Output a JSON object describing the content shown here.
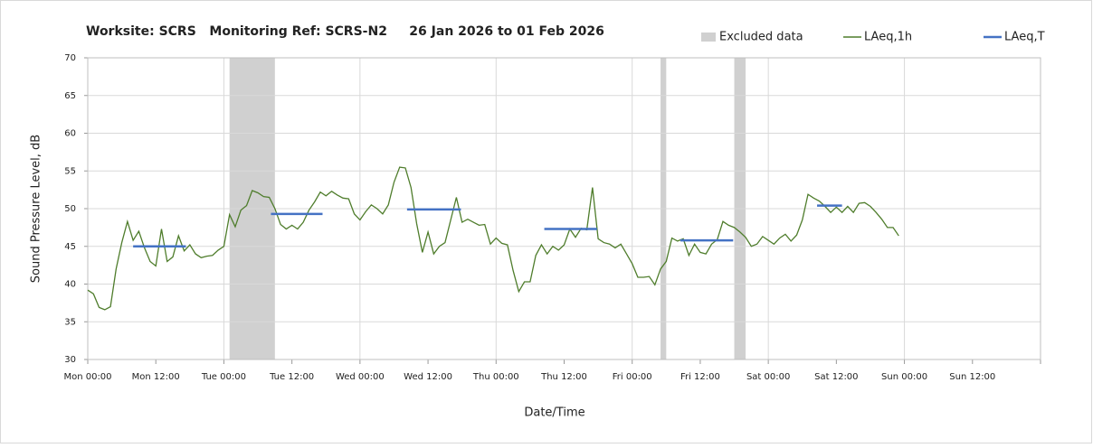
{
  "chart_data": {
    "type": "line",
    "title": "Worksite: SCRS   Monitoring Ref: SCRS-N2     26 Jan 2026 to 01 Feb 2026",
    "xlabel": "Date/Time",
    "ylabel": "Sound Pressure Level, dB",
    "xlim": [
      0,
      168
    ],
    "ylim": [
      30,
      70
    ],
    "xticks": [
      {
        "value": 0,
        "label": "Mon 00:00"
      },
      {
        "value": 12,
        "label": "Mon 12:00"
      },
      {
        "value": 24,
        "label": "Tue 00:00"
      },
      {
        "value": 36,
        "label": "Tue 12:00"
      },
      {
        "value": 48,
        "label": "Wed 00:00"
      },
      {
        "value": 60,
        "label": "Wed 12:00"
      },
      {
        "value": 72,
        "label": "Thu 00:00"
      },
      {
        "value": 84,
        "label": "Thu 12:00"
      },
      {
        "value": 96,
        "label": "Fri 00:00"
      },
      {
        "value": 108,
        "label": "Fri 12:00"
      },
      {
        "value": 120,
        "label": "Sat 00:00"
      },
      {
        "value": 132,
        "label": "Sat 12:00"
      },
      {
        "value": 144,
        "label": "Sun 00:00"
      },
      {
        "value": 156,
        "label": "Sun 12:00"
      }
    ],
    "yticks": [
      30,
      35,
      40,
      45,
      50,
      55,
      60,
      65,
      70
    ],
    "grid": true,
    "excluded": {
      "name": "Excluded data",
      "color": "#d0d0d0",
      "ranges": [
        [
          25,
          33
        ],
        [
          101,
          102
        ],
        [
          114,
          116
        ]
      ]
    },
    "series": [
      {
        "name": "LAeq,1h",
        "color": "#4f7d2c",
        "x": [
          0,
          1,
          2,
          3,
          4,
          5,
          6,
          7,
          8,
          9,
          10,
          11,
          12,
          13,
          14,
          15,
          16,
          17,
          18,
          19,
          20,
          21,
          22,
          23,
          24,
          25,
          26,
          27,
          28,
          29,
          30,
          31,
          32,
          33,
          34,
          35,
          36,
          37,
          38,
          39,
          40,
          41,
          42,
          43,
          44,
          45,
          46,
          47,
          48,
          49,
          50,
          51,
          52,
          53,
          54,
          55,
          56,
          57,
          58,
          59,
          60,
          61,
          62,
          63,
          64,
          65,
          66,
          67,
          68,
          69,
          70,
          71,
          72,
          73,
          74,
          75,
          76,
          77,
          78,
          79,
          80,
          81,
          82,
          83,
          84,
          85,
          86,
          87,
          88,
          89,
          90,
          91,
          92,
          93,
          94,
          95,
          96,
          97,
          98,
          99,
          100,
          101,
          102,
          103,
          104,
          105,
          106,
          107,
          108,
          109,
          110,
          111,
          112,
          113,
          114,
          115,
          116,
          117,
          118,
          119,
          120,
          121,
          122,
          123,
          124,
          125,
          126,
          127,
          128,
          129,
          130,
          131,
          132,
          133,
          134,
          135,
          136,
          137,
          138,
          139,
          140,
          141,
          142,
          143
        ],
        "values": [
          39.2,
          38.7,
          36.9,
          36.6,
          37,
          42,
          45.5,
          48.3,
          45.8,
          47,
          44.8,
          43,
          42.4,
          47.3,
          43,
          43.6,
          46.4,
          44.4,
          45.2,
          44,
          43.5,
          43.7,
          43.8,
          44.5,
          45,
          49.2,
          47.6,
          49.8,
          50.4,
          52.4,
          52.1,
          51.6,
          51.5,
          50,
          47.9,
          47.3,
          47.8,
          47.3,
          48.2,
          49.8,
          50.9,
          52.2,
          51.7,
          52.3,
          51.8,
          51.4,
          51.3,
          49.3,
          48.5,
          49.6,
          50.5,
          50,
          49.3,
          50.5,
          53.5,
          55.5,
          55.4,
          52.8,
          48,
          44.2,
          46.9,
          44,
          45,
          45.5,
          48.5,
          51.5,
          48.2,
          48.6,
          48.2,
          47.8,
          47.9,
          45.3,
          46.1,
          45.4,
          45.2,
          41.8,
          39,
          40.3,
          40.3,
          43.8,
          45.2,
          44,
          45,
          44.5,
          45.2,
          47.3,
          46.2,
          47.4,
          47.2,
          52.8,
          46,
          45.5,
          45.3,
          44.8,
          45.3,
          44,
          42.7,
          40.9,
          40.9,
          41,
          39.9,
          42,
          43,
          46.1,
          45.7,
          46,
          43.8,
          45.3,
          44.2,
          44,
          45.3,
          45.9,
          48.3,
          47.8,
          47.5,
          46.9,
          46.2,
          45,
          45.3,
          46.3,
          45.8,
          45.3,
          46.1,
          46.6,
          45.7,
          46.5,
          48.5,
          51.9,
          51.4,
          51,
          50.3,
          49.5,
          50.2,
          49.5,
          50.3,
          49.5,
          50.7,
          50.8,
          50.3,
          49.5,
          48.6,
          47.5,
          47.5,
          46.4
        ]
      },
      {
        "name": "LAeq,T",
        "color": "#4472c4",
        "segments": [
          {
            "x": [
              8,
              17.3
            ],
            "value": 45
          },
          {
            "x": [
              32.3,
              41.4
            ],
            "value": 49.3
          },
          {
            "x": [
              56.3,
              65.8
            ],
            "value": 49.9
          },
          {
            "x": [
              80.5,
              89.8
            ],
            "value": 47.3
          },
          {
            "x": [
              104.5,
              113.8
            ],
            "value": 45.8
          },
          {
            "x": [
              128.6,
              133
            ],
            "value": 50.4
          }
        ]
      }
    ]
  }
}
